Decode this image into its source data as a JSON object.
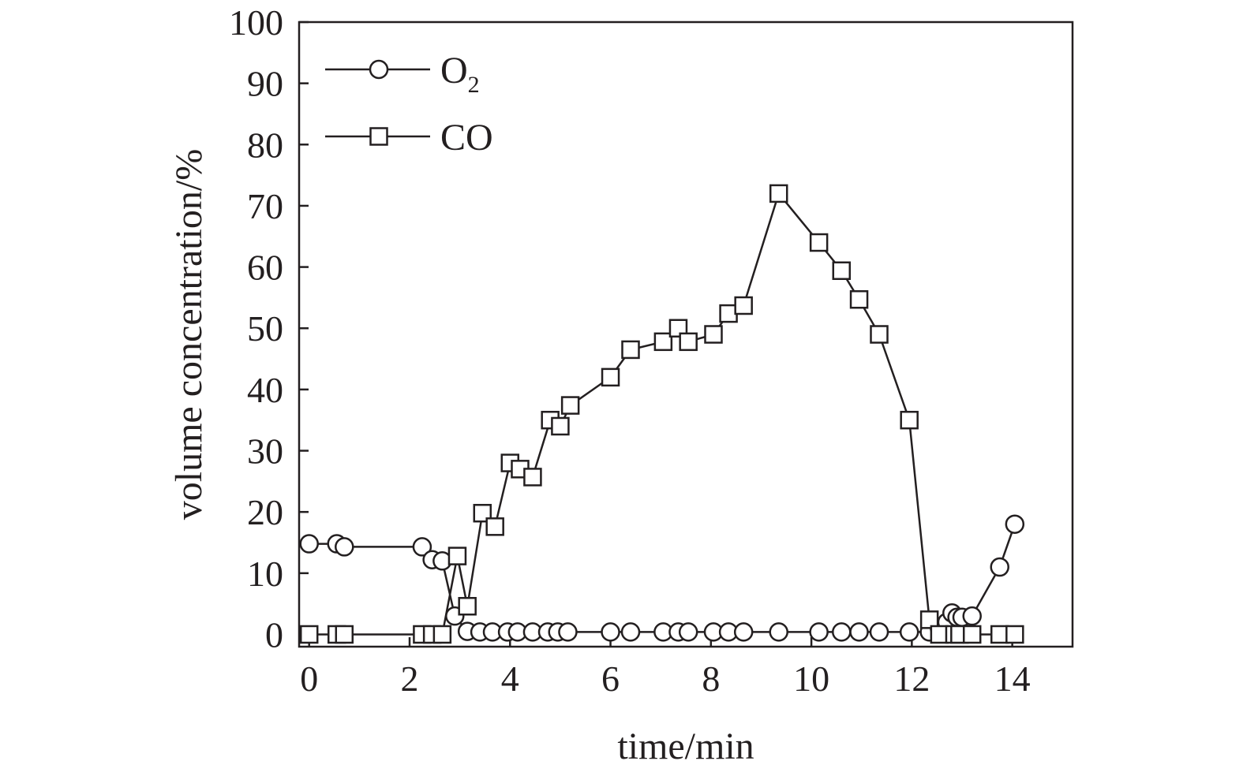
{
  "chart_data": {
    "type": "line",
    "xlabel": "time/min",
    "ylabel": "volume concentration/%",
    "xlim": [
      -0.2,
      15.2
    ],
    "ylim": [
      -2,
      100
    ],
    "xticks": [
      0,
      2,
      4,
      6,
      8,
      10,
      12,
      14
    ],
    "yticks": [
      0,
      10,
      20,
      30,
      40,
      50,
      60,
      70,
      80,
      90,
      100
    ],
    "legend_position": "top-left",
    "series": [
      {
        "name": "O",
        "name_subscript": "2",
        "marker": "circle",
        "color": "#231f20",
        "x": [
          0.0,
          0.55,
          0.7,
          2.25,
          2.45,
          2.65,
          2.9,
          3.15,
          3.4,
          3.65,
          3.95,
          4.15,
          4.45,
          4.75,
          4.95,
          5.15,
          6.0,
          6.4,
          7.05,
          7.35,
          7.55,
          8.05,
          8.35,
          8.65,
          9.35,
          10.15,
          10.6,
          10.95,
          11.35,
          11.95,
          12.35,
          12.55,
          12.7,
          12.8,
          12.9,
          13.0,
          13.2,
          13.75,
          14.05
        ],
        "y": [
          14.8,
          14.8,
          14.3,
          14.3,
          12.2,
          12.0,
          3.0,
          0.5,
          0.4,
          0.4,
          0.4,
          0.4,
          0.4,
          0.4,
          0.4,
          0.4,
          0.4,
          0.4,
          0.4,
          0.4,
          0.4,
          0.4,
          0.4,
          0.4,
          0.4,
          0.4,
          0.4,
          0.4,
          0.4,
          0.4,
          0.4,
          1.0,
          2.0,
          3.5,
          2.8,
          2.8,
          3.0,
          11.0,
          18.0
        ]
      },
      {
        "name": "CO",
        "marker": "square",
        "color": "#231f20",
        "x": [
          0.0,
          0.55,
          0.7,
          2.25,
          2.45,
          2.65,
          2.95,
          3.15,
          3.45,
          3.7,
          4.0,
          4.2,
          4.45,
          4.8,
          5.0,
          5.2,
          6.0,
          6.4,
          7.05,
          7.35,
          7.55,
          8.05,
          8.35,
          8.65,
          9.35,
          10.15,
          10.6,
          10.95,
          11.35,
          11.95,
          12.35,
          12.55,
          12.85,
          12.95,
          13.2,
          13.75,
          14.05
        ],
        "y": [
          0,
          0,
          0,
          0,
          0,
          0,
          12.8,
          4.6,
          19.8,
          17.6,
          28.0,
          27.0,
          25.7,
          35.0,
          34.0,
          37.4,
          42.0,
          46.5,
          47.8,
          50.0,
          47.8,
          49.0,
          52.4,
          53.7,
          72.0,
          64.0,
          59.4,
          54.7,
          49.0,
          35.0,
          2.4,
          0,
          0,
          0,
          0,
          0,
          0
        ]
      }
    ]
  }
}
